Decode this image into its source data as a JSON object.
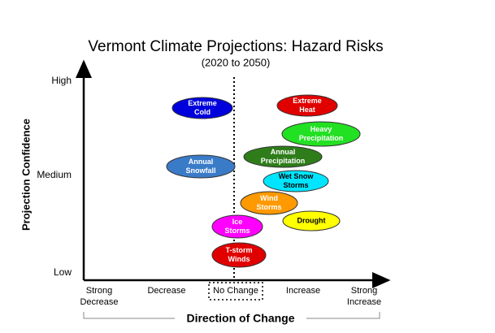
{
  "header": {
    "title": "Vermont Climate Projections: Hazard Risks",
    "subtitle": "(2020 to 2050)"
  },
  "y_axis": {
    "title": "Projection Confidence",
    "labels": [
      "High",
      "Medium",
      "Low"
    ]
  },
  "x_axis": {
    "title": "Direction of Change",
    "labels": [
      [
        "Strong",
        "Decrease"
      ],
      [
        "Decrease"
      ],
      [
        "No Change"
      ],
      [
        "Increase"
      ],
      [
        "Strong",
        "Increase"
      ]
    ]
  },
  "nodes": [
    {
      "label": [
        "Extreme",
        "Cold"
      ],
      "color": "#0000dd",
      "text_color": "#ffffff"
    },
    {
      "label": [
        "Extreme",
        "Heat"
      ],
      "color": "#e00000",
      "text_color": "#ffffff"
    },
    {
      "label": [
        "Heavy",
        "Precipitation"
      ],
      "color": "#22e022",
      "text_color": "#ffffff"
    },
    {
      "label": [
        "Annual",
        "Precipitation"
      ],
      "color": "#2e7d1a",
      "text_color": "#ffffff"
    },
    {
      "label": [
        "Annual",
        "Snowfall"
      ],
      "color": "#3a7bc8",
      "text_color": "#ffffff"
    },
    {
      "label": [
        "Wet Snow",
        "Storms"
      ],
      "color": "#00e5ff",
      "text_color": "#000000"
    },
    {
      "label": [
        "Wind",
        "Storms"
      ],
      "color": "#ff9900",
      "text_color": "#ffffff"
    },
    {
      "label": [
        "Drought"
      ],
      "color": "#ffff00",
      "text_color": "#000000"
    },
    {
      "label": [
        "Ice",
        "Storms"
      ],
      "color": "#ff00ff",
      "text_color": "#ffffff"
    },
    {
      "label": [
        "T-storm",
        "Winds"
      ],
      "color": "#e00000",
      "text_color": "#ffffff"
    }
  ]
}
